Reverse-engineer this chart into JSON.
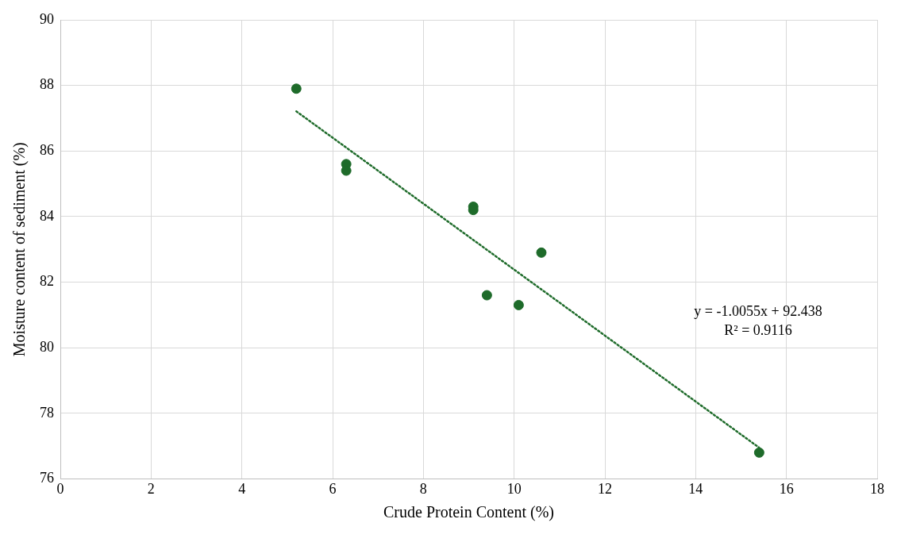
{
  "chart_data": {
    "type": "scatter",
    "xlabel": "Crude Protein Content (%)",
    "ylabel": "Moisture content of sediment (%)",
    "xlim": [
      0,
      18
    ],
    "xticks": [
      0,
      2,
      4,
      6,
      8,
      10,
      12,
      14,
      16,
      18
    ],
    "ylim": [
      76,
      90
    ],
    "yticks": [
      76,
      78,
      80,
      82,
      84,
      86,
      88,
      90
    ],
    "grid": true,
    "series": [
      {
        "color": "#1e6b2a",
        "marker": "circle",
        "x": [
          5.2,
          6.3,
          6.3,
          9.1,
          9.1,
          10.6,
          9.4,
          10.1,
          15.4
        ],
        "values": [
          87.9,
          85.6,
          85.4,
          84.3,
          84.2,
          82.9,
          81.6,
          81.3,
          76.8
        ]
      },
      {
        "type": "line",
        "color": "#1e6b2a",
        "marker": "none",
        "line_style": "dotted",
        "x": [
          5.2,
          15.4
        ],
        "values": [
          87.21,
          76.95
        ]
      }
    ],
    "annotations": [
      "y = -1.0055x + 92.438",
      "R² = 0.9116"
    ]
  }
}
